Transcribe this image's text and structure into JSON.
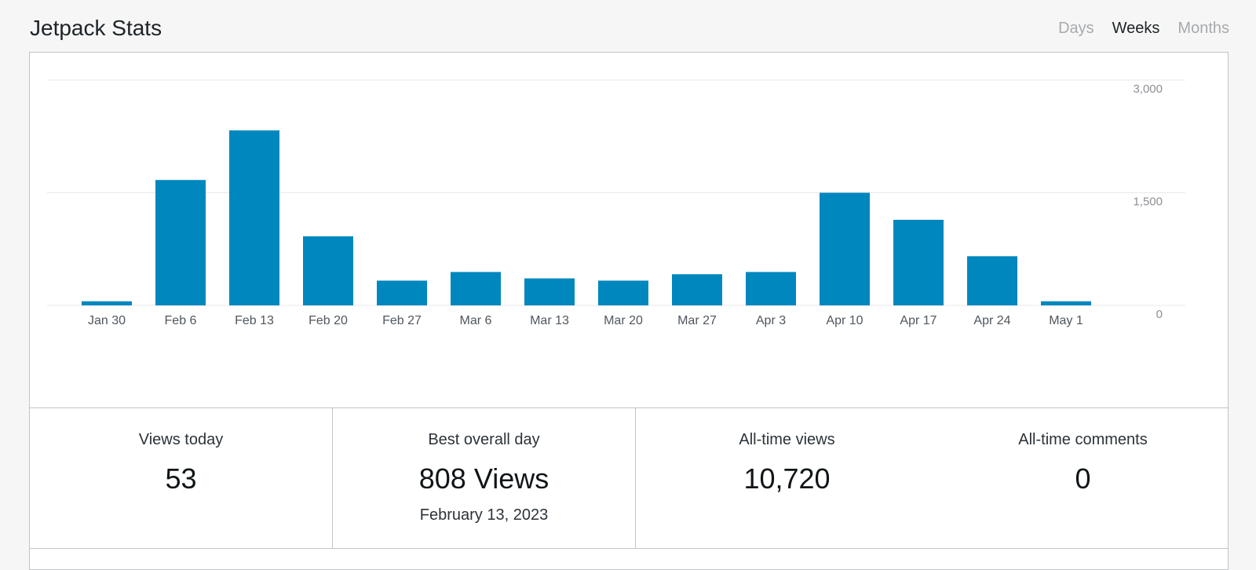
{
  "header": {
    "title": "Jetpack Stats",
    "periods": [
      {
        "label": "Days",
        "active": false
      },
      {
        "label": "Weeks",
        "active": true
      },
      {
        "label": "Months",
        "active": false
      }
    ]
  },
  "chart_data": {
    "type": "bar",
    "categories": [
      "Jan 30",
      "Feb 6",
      "Feb 13",
      "Feb 20",
      "Feb 27",
      "Mar 6",
      "Mar 13",
      "Mar 20",
      "Mar 27",
      "Apr 3",
      "Apr 10",
      "Apr 17",
      "Apr 24",
      "May 1"
    ],
    "values": [
      55,
      1670,
      2330,
      920,
      330,
      445,
      360,
      330,
      415,
      445,
      1500,
      1140,
      655,
      55
    ],
    "yticks": [
      "0",
      "1,500",
      "3,000"
    ],
    "ylim": [
      0,
      3000
    ],
    "grid": true,
    "color": "#0087be"
  },
  "stats": {
    "views_today": {
      "label": "Views today",
      "value": "53"
    },
    "best_day": {
      "label": "Best overall day",
      "value": "808 Views",
      "date": "February 13, 2023"
    },
    "all_time_views": {
      "label": "All-time views",
      "value": "10,720"
    },
    "all_time_comments": {
      "label": "All-time comments",
      "value": "0"
    }
  }
}
